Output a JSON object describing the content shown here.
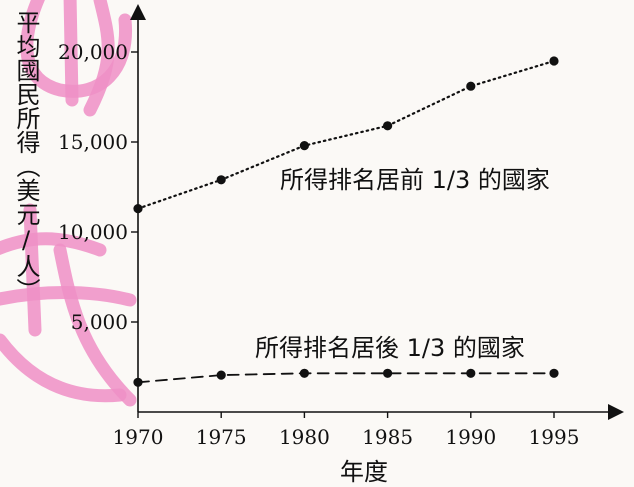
{
  "chart_data": {
    "type": "line",
    "ylabel": "平均國民所得（美元/人）",
    "xlabel": "年度",
    "x": [
      1970,
      1975,
      1980,
      1985,
      1990,
      1995
    ],
    "ylim": [
      0,
      22000
    ],
    "xlim": [
      1970,
      1996
    ],
    "yticks": [
      5000,
      10000,
      15000,
      20000
    ],
    "ytick_labels": [
      "5,000",
      "10,000",
      "15,000",
      "20,000"
    ],
    "xtick_labels": [
      "1970",
      "1975",
      "1980",
      "1985",
      "1990",
      "1995"
    ],
    "grid": false,
    "series": [
      {
        "name": "所得排名居前 1/3 的國家",
        "values": [
          11300,
          12900,
          14800,
          15900,
          18100,
          19500
        ],
        "line_style": "dotted"
      },
      {
        "name": "所得排名居後 1/3 的國家",
        "values": [
          1650,
          2050,
          2150,
          2150,
          2150,
          2150
        ],
        "line_style": "dashed"
      }
    ]
  },
  "watermark": {
    "color": "#ee8fc6",
    "text": "公民"
  }
}
